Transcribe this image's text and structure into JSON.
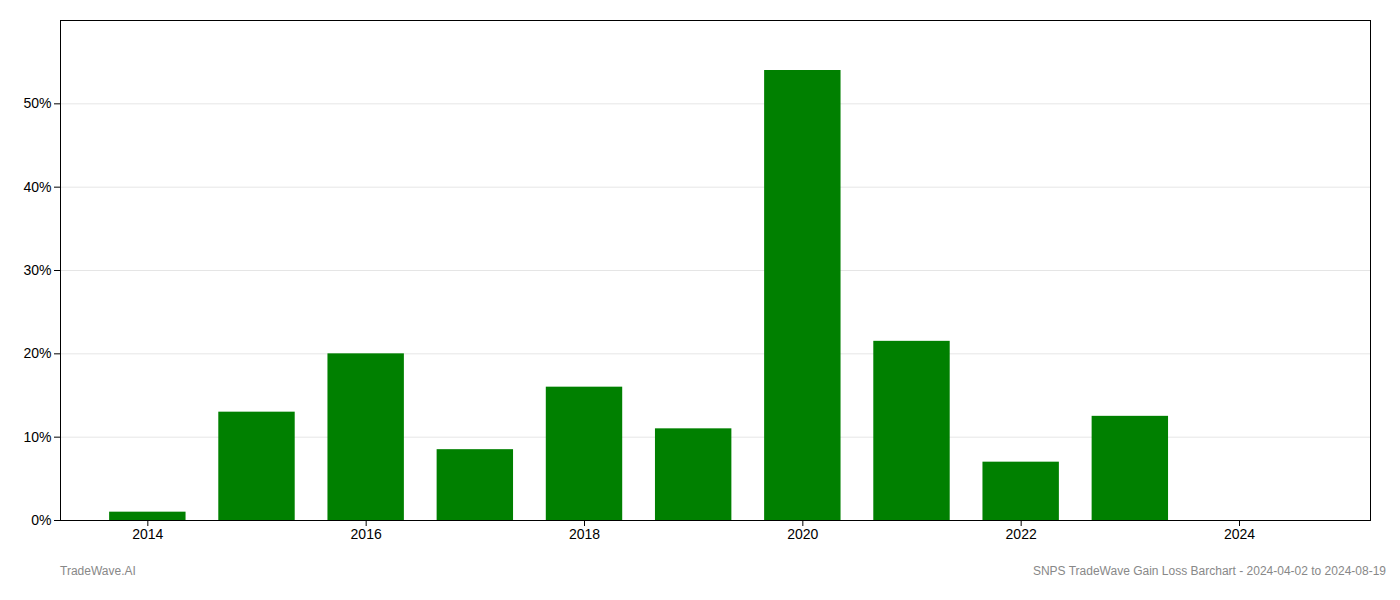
{
  "chart_data": {
    "type": "bar",
    "x": [
      2014,
      2015,
      2016,
      2017,
      2018,
      2019,
      2020,
      2021,
      2022,
      2023
    ],
    "values": [
      0.01,
      0.13,
      0.2,
      0.085,
      0.16,
      0.11,
      0.54,
      0.215,
      0.07,
      0.125
    ],
    "color": "#008000",
    "xlim": [
      2013.2,
      2025.2
    ],
    "xticks": [
      2014,
      2016,
      2018,
      2020,
      2022,
      2024
    ],
    "ylim": [
      0,
      0.6
    ],
    "yticks": [
      {
        "value": 0,
        "label": "0%"
      },
      {
        "value": 0.1,
        "label": "10%"
      },
      {
        "value": 0.2,
        "label": "20%"
      },
      {
        "value": 0.3,
        "label": "30%"
      },
      {
        "value": 0.4,
        "label": "40%"
      },
      {
        "value": 0.5,
        "label": "50%"
      }
    ],
    "grid": true,
    "annotations": [
      "TradeWave.AI",
      "SNPS TradeWave Gain Loss Barchart - 2024-04-02 to 2024-08-19"
    ]
  }
}
